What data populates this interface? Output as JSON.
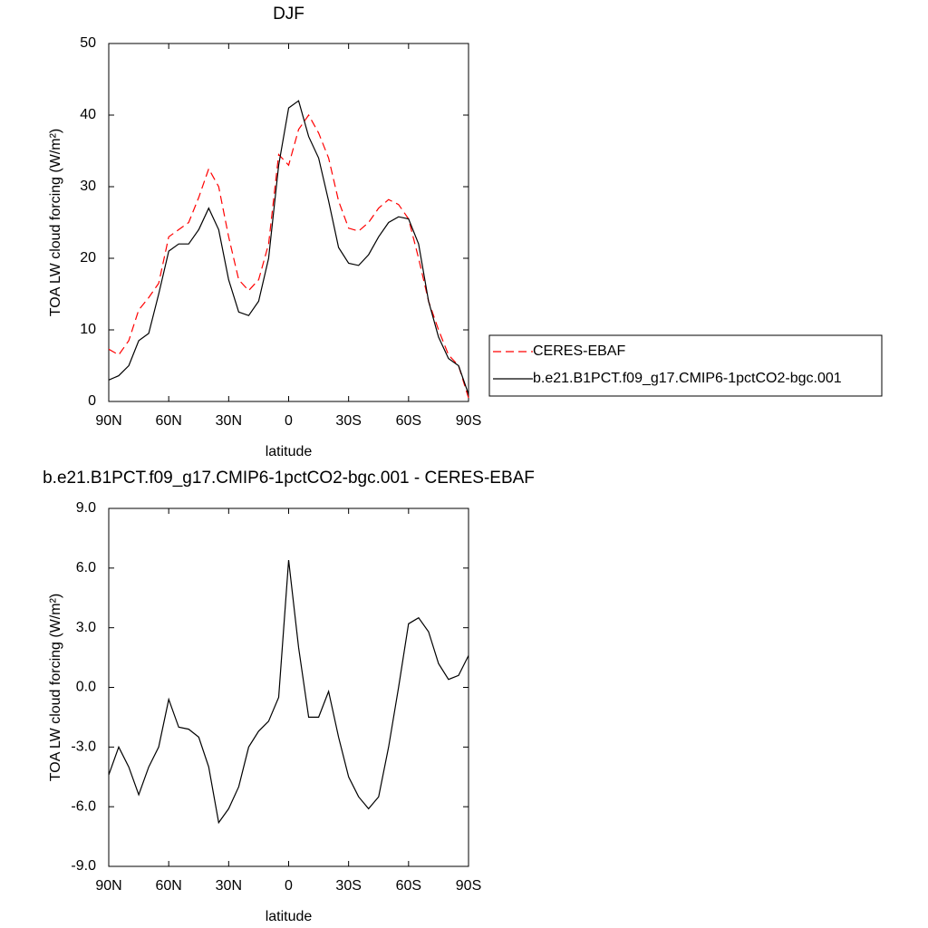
{
  "chart_data": [
    {
      "type": "line",
      "title": "DJF",
      "x_label": "latitude",
      "y_label": "TOA LW cloud forcing (W/m²)",
      "x": [
        90,
        85,
        80,
        75,
        70,
        65,
        60,
        55,
        50,
        45,
        40,
        35,
        30,
        25,
        20,
        15,
        10,
        5,
        0,
        -5,
        -10,
        -15,
        -20,
        -25,
        -30,
        -35,
        -40,
        -45,
        -50,
        -55,
        -60,
        -65,
        -70,
        -75,
        -80,
        -85,
        -90
      ],
      "series": [
        {
          "name": "CERES-EBAF",
          "color": "#ff0000",
          "dashed": true,
          "values": [
            7.3,
            6.5,
            8.5,
            12.8,
            14.5,
            16.5,
            23,
            24,
            25,
            28.5,
            32.5,
            30,
            23,
            17,
            15.5,
            17,
            22,
            34.5,
            33,
            38,
            40,
            37.5,
            34,
            28,
            24.2,
            23.8,
            25,
            27,
            28.2,
            27.5,
            25.5,
            20,
            14,
            10,
            6.5,
            5,
            0.5
          ]
        },
        {
          "name": "b.e21.B1PCT.f09_g17.CMIP6-1pctCO2-bgc.001",
          "color": "#000000",
          "dashed": false,
          "values": [
            3,
            3.6,
            5,
            8.5,
            9.5,
            15,
            21,
            22,
            22,
            24,
            27,
            24,
            17,
            12.5,
            12,
            14,
            20,
            33,
            41,
            42,
            37,
            34,
            28,
            21.5,
            19.3,
            19,
            20.5,
            23,
            25,
            25.8,
            25.5,
            22,
            14,
            9,
            6,
            5,
            1
          ]
        }
      ],
      "xlim": [
        90,
        -90
      ],
      "xticks": [
        {
          "value": 90,
          "label": "90N"
        },
        {
          "value": 60,
          "label": "60N"
        },
        {
          "value": 30,
          "label": "30N"
        },
        0,
        {
          "value": -30,
          "label": "30S"
        },
        {
          "value": -60,
          "label": "60S"
        },
        {
          "value": -90,
          "label": "90S"
        }
      ],
      "ylim": [
        0,
        50
      ],
      "yticks": [
        0,
        10,
        20,
        30,
        40,
        50
      ],
      "legend": "right"
    },
    {
      "type": "line",
      "title": "b.e21.B1PCT.f09_g17.CMIP6-1pctCO2-bgc.001 - CERES-EBAF",
      "x_label": "latitude",
      "y_label": "TOA LW cloud forcing (W/m²)",
      "x": [
        90,
        85,
        80,
        75,
        70,
        65,
        60,
        55,
        50,
        45,
        40,
        35,
        30,
        25,
        20,
        15,
        10,
        5,
        0,
        -5,
        -10,
        -15,
        -20,
        -25,
        -30,
        -35,
        -40,
        -45,
        -50,
        -55,
        -60,
        -65,
        -70,
        -75,
        -80,
        -85,
        -90
      ],
      "series": [
        {
          "color": "#000000",
          "dashed": false,
          "values": [
            -4.4,
            -3,
            -4,
            -5.4,
            -4,
            -3,
            -0.6,
            -2,
            -2.1,
            -2.5,
            -4,
            -6.8,
            -6.1,
            -5,
            -3,
            -2.2,
            -1.7,
            -0.5,
            6.4,
            2,
            -1.5,
            -1.5,
            -0.2,
            -2.5,
            -4.5,
            -5.5,
            -6.1,
            -5.5,
            -3,
            0,
            3.2,
            3.5,
            2.8,
            1.2,
            0.4,
            0.6,
            1.6
          ]
        }
      ],
      "xlim": [
        90,
        -90
      ],
      "xticks": [
        {
          "value": 90,
          "label": "90N"
        },
        {
          "value": 60,
          "label": "60N"
        },
        {
          "value": 30,
          "label": "30N"
        },
        0,
        {
          "value": -30,
          "label": "30S"
        },
        {
          "value": -60,
          "label": "60S"
        },
        {
          "value": -90,
          "label": "90S"
        }
      ],
      "ylim": [
        -9,
        9
      ],
      "yticks": [
        {
          "value": -9,
          "label": "-9.0"
        },
        {
          "value": -6,
          "label": "-6.0"
        },
        {
          "value": -3,
          "label": "-3.0"
        },
        {
          "value": 0,
          "label": "0.0"
        },
        {
          "value": 3,
          "label": "3.0"
        },
        {
          "value": 6,
          "label": "6.0"
        },
        {
          "value": 9,
          "label": "9.0"
        }
      ]
    }
  ]
}
